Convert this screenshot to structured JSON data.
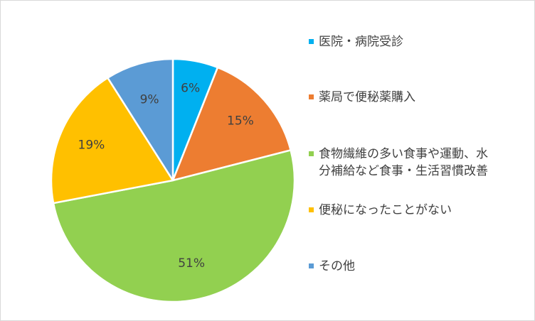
{
  "chart_data": {
    "type": "pie",
    "categories": [
      "医院・病院受診",
      "薬局で便秘薬購入",
      "食物繊維の多い食事や運動、水\n分補給など食事・生活習慣改善",
      "便秘になったことがない",
      "その他"
    ],
    "values": [
      6,
      15,
      51,
      19,
      9
    ],
    "value_labels": [
      "6%",
      "15%",
      "51%",
      "19%",
      "9%"
    ],
    "colors": [
      "#00b0f0",
      "#ed7d31",
      "#92d050",
      "#ffc000",
      "#5b9bd5"
    ],
    "title": "",
    "legend_position": "right"
  }
}
